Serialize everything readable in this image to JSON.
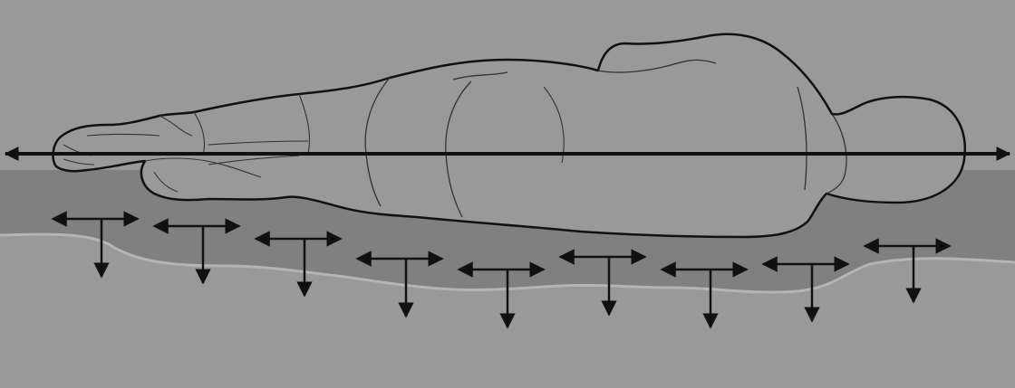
{
  "diagram": {
    "colors": {
      "background": "#999999",
      "mattress": "#808080",
      "mattress_edge": "#b4b4b4",
      "body_fill": "#999999",
      "outline": "#111111",
      "detail_line": "#333333",
      "axis_arrow": "#111111",
      "force_arrow": "#111111"
    },
    "icons": {
      "axis": "double-headed-horizontal-arrow",
      "force": "t-shaped-force-arrow",
      "figure": "human-figure-lying-side"
    },
    "force_arrows": [
      {
        "id": "force-1"
      },
      {
        "id": "force-2"
      },
      {
        "id": "force-3"
      },
      {
        "id": "force-4"
      },
      {
        "id": "force-5"
      },
      {
        "id": "force-6"
      },
      {
        "id": "force-7"
      },
      {
        "id": "force-8"
      },
      {
        "id": "force-9"
      }
    ]
  }
}
